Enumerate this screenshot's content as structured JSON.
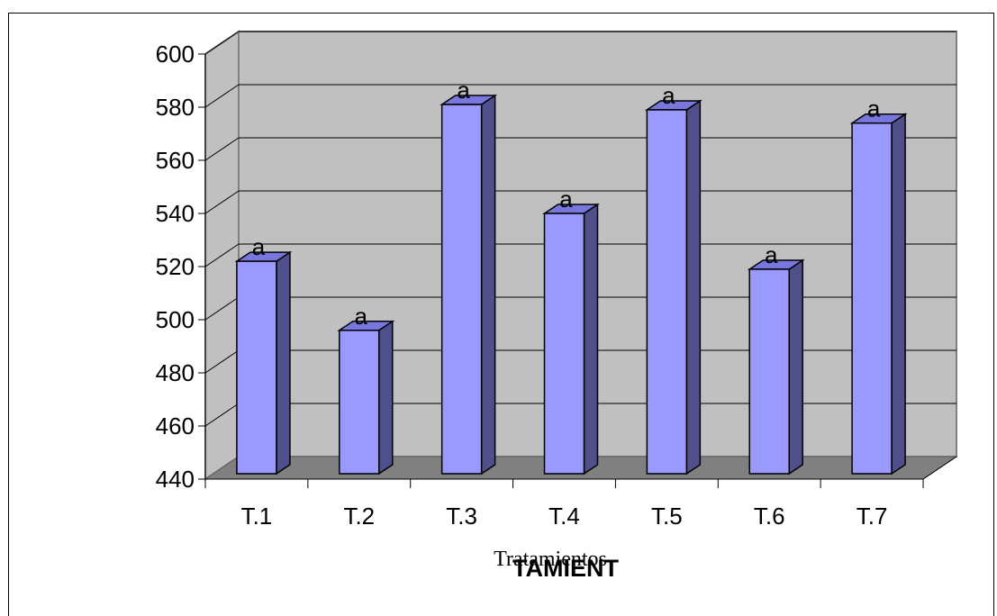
{
  "chart_data": {
    "type": "bar",
    "categories": [
      "T.1",
      "T.2",
      "T.3",
      "T.4",
      "T.5",
      "T.6",
      "T.7"
    ],
    "values": [
      522,
      496,
      581,
      540,
      579,
      519,
      574
    ],
    "data_labels": [
      "a",
      "a",
      "a",
      "a",
      "a",
      "a",
      "a"
    ],
    "ylim": [
      440,
      600
    ],
    "yticks": [
      440,
      460,
      480,
      500,
      520,
      540,
      560,
      580,
      600
    ],
    "xlabel": "Tratamientos",
    "xlabel_overlay": "TAMIENT",
    "ylabel": "",
    "title": "",
    "grid": true,
    "style": "3d-bar",
    "colors": {
      "bar_front": "#9999ff",
      "bar_side": "#4f4f8c",
      "bar_top": "#7777dd",
      "wall": "#c0c0c0",
      "floor": "#808080",
      "grid": "#000000"
    }
  }
}
